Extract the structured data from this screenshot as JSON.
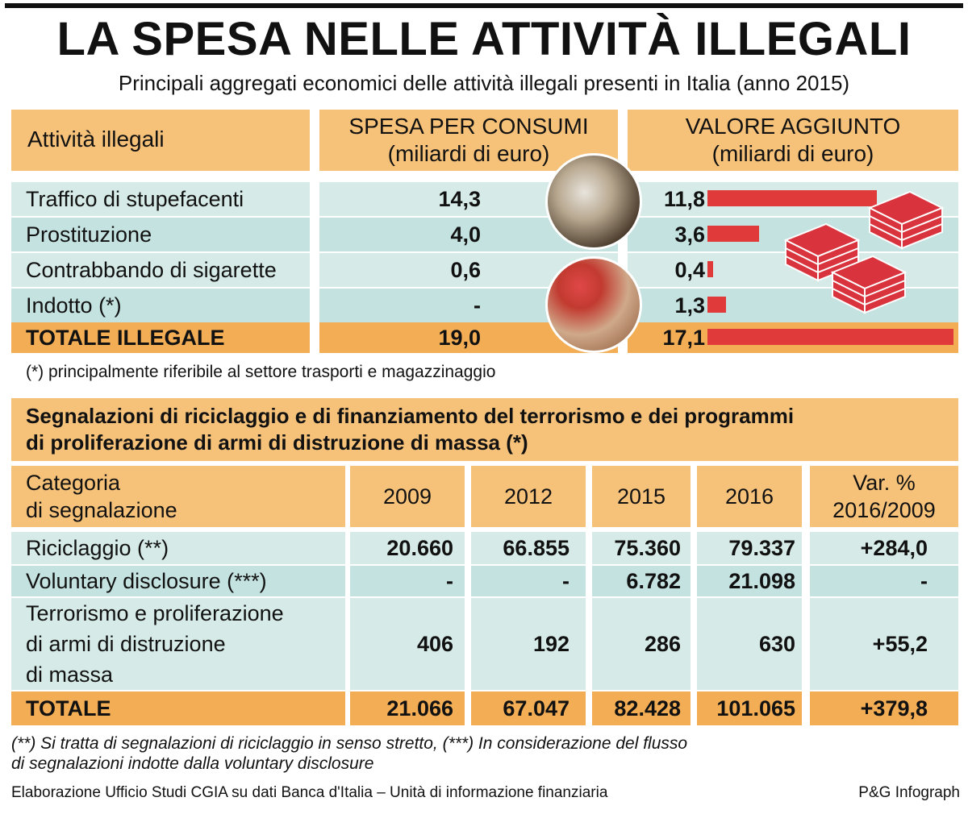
{
  "title": "LA SPESA NELLE ATTIVITÀ ILLEGALI",
  "subtitle": "Principali aggregati economici delle attività illegali presenti in Italia (anno 2015)",
  "table1": {
    "col_activity": "Attività illegali",
    "col_spesa": [
      "SPESA PER CONSUMI",
      "(miliardi di euro)"
    ],
    "col_valore": [
      "VALORE AGGIUNTO",
      "(miliardi di euro)"
    ],
    "rows": [
      {
        "label": "Traffico di stupefacenti",
        "spesa": "14,3",
        "valore": "11,8"
      },
      {
        "label": "Prostituzione",
        "spesa": "4,0",
        "valore": "3,6"
      },
      {
        "label": "Contrabbando di sigarette",
        "spesa": "0,6",
        "valore": "0,4"
      },
      {
        "label": "Indotto (*)",
        "spesa": "-",
        "valore": "1,3"
      }
    ],
    "total": {
      "label": "TOTALE ILLEGALE",
      "spesa": "19,0",
      "valore": "17,1"
    },
    "footnote": "(*) principalmente riferibile al settore trasporti e magazzinaggio"
  },
  "table2": {
    "heading": [
      "Segnalazioni di riciclaggio e di finanziamento del terrorismo e dei programmi",
      "di proliferazione di armi di distruzione di massa (*)"
    ],
    "col_category": [
      "Categoria",
      "di segnalazione"
    ],
    "years": [
      "2009",
      "2012",
      "2015",
      "2016"
    ],
    "col_var": [
      "Var. %",
      "2016/2009"
    ],
    "rows": [
      {
        "label": [
          "Riciclaggio (**)"
        ],
        "values": [
          "20.660",
          "66.855",
          "75.360",
          "79.337"
        ],
        "var": "+284,0"
      },
      {
        "label": [
          "Voluntary disclosure (***)"
        ],
        "values": [
          "-",
          "-",
          "6.782",
          "21.098"
        ],
        "var": "-"
      },
      {
        "label": [
          "Terrorismo e proliferazione",
          "di armi di distruzione",
          "di massa"
        ],
        "values": [
          "406",
          "192",
          "286",
          "630"
        ],
        "var": "+55,2"
      }
    ],
    "total": {
      "label": "TOTALE",
      "values": [
        "21.066",
        "67.047",
        "82.428",
        "101.065"
      ],
      "var": "+379,8"
    },
    "footnote": [
      "(**) Si tratta di segnalazioni di riciclaggio in senso stretto, (***) In considerazione del flusso",
      "di segnalazioni indotte dalla voluntary disclosure"
    ]
  },
  "source": "Elaborazione Ufficio Studi CGIA su dati Banca d'Italia – Unità di informazione finanziaria",
  "credit": "P&G Infograph",
  "chart_data": {
    "type": "bar",
    "categories": [
      "Traffico di stupefacenti",
      "Prostituzione",
      "Contrabbando di sigarette",
      "Indotto (*)",
      "TOTALE ILLEGALE"
    ],
    "values": [
      11.8,
      3.6,
      0.4,
      1.3,
      17.1
    ],
    "title": "VALORE AGGIUNTO",
    "ylabel": "(miliardi di euro)",
    "ylim": [
      0,
      17.1
    ],
    "color": "#e03a3a"
  },
  "colors": {
    "orange": "#f6c27a",
    "orange_dark": "#f2ad55",
    "blue": "#d6ebe7",
    "bar": "#e03a3a"
  }
}
